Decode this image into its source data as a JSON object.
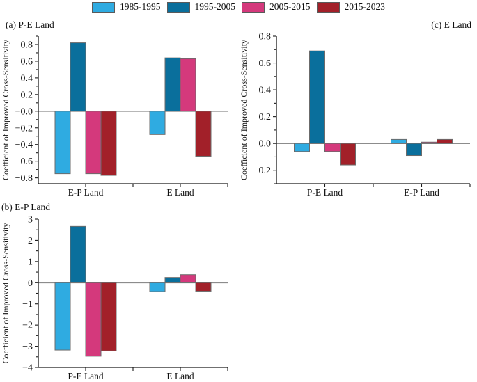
{
  "figure": {
    "legend": {
      "items": [
        {
          "label": "1985-1995",
          "color": "#2fabe1"
        },
        {
          "label": "1995-2005",
          "color": "#0a6f9c"
        },
        {
          "label": "2005-2015",
          "color": "#d4397c"
        },
        {
          "label": "2015-2023",
          "color": "#a22029"
        }
      ]
    }
  },
  "style": {
    "zero_line_color": "#8c8c8c",
    "bar_border_color": "#6b6b6b",
    "axis_color": "#1a1a1a",
    "text_color": "#111111"
  },
  "chart_data": [
    {
      "id": "a",
      "type": "bar",
      "title": "(a) P-E Land",
      "ylabel": "Coefficient of Improved Cross-Sensitivity",
      "xlabel": "",
      "categories": [
        "E-P Land",
        "E Land"
      ],
      "series": [
        {
          "name": "1985-1995",
          "color": "#2fabe1",
          "values": [
            -0.75,
            -0.28
          ]
        },
        {
          "name": "1995-2005",
          "color": "#0a6f9c",
          "values": [
            0.82,
            0.64
          ]
        },
        {
          "name": "2005-2015",
          "color": "#d4397c",
          "values": [
            -0.75,
            0.63
          ]
        },
        {
          "name": "2015-2023",
          "color": "#a22029",
          "values": [
            -0.77,
            -0.54
          ]
        }
      ],
      "ylim": [
        -0.87,
        0.9
      ],
      "ytick_min": -0.8,
      "ytick_max": 0.8,
      "ytick_step": 0.2,
      "decimals": 1,
      "grid": false,
      "legend_position": "shared-top-center"
    },
    {
      "id": "b",
      "type": "bar",
      "title": "(b) E-P Land",
      "ylabel": "Coefficient of Improved Cross-Sensitivity",
      "xlabel": "",
      "categories": [
        "P-E Land",
        "E Land"
      ],
      "series": [
        {
          "name": "1985-1995",
          "color": "#2fabe1",
          "values": [
            -3.18,
            -0.42
          ]
        },
        {
          "name": "1995-2005",
          "color": "#0a6f9c",
          "values": [
            2.66,
            0.25
          ]
        },
        {
          "name": "2005-2015",
          "color": "#d4397c",
          "values": [
            -3.47,
            0.38
          ]
        },
        {
          "name": "2015-2023",
          "color": "#a22029",
          "values": [
            -3.22,
            -0.4
          ]
        }
      ],
      "ylim": [
        -4,
        3
      ],
      "ytick_min": -4,
      "ytick_max": 3,
      "ytick_step": 1,
      "decimals": 0,
      "grid": false,
      "legend_position": "shared-top-center"
    },
    {
      "id": "c",
      "type": "bar",
      "title": "(c) E Land",
      "ylabel": "Coefficient of Improved Cross-Sensitivity",
      "xlabel": "",
      "categories": [
        "P-E Land",
        "E-P Land"
      ],
      "series": [
        {
          "name": "1985-1995",
          "color": "#2fabe1",
          "values": [
            -0.06,
            0.03
          ]
        },
        {
          "name": "1995-2005",
          "color": "#0a6f9c",
          "values": [
            0.69,
            -0.09
          ]
        },
        {
          "name": "2005-2015",
          "color": "#d4397c",
          "values": [
            -0.06,
            0.01
          ]
        },
        {
          "name": "2015-2023",
          "color": "#a22029",
          "values": [
            -0.16,
            0.03
          ]
        }
      ],
      "ylim": [
        -0.3,
        0.8
      ],
      "ytick_min": -0.2,
      "ytick_max": 0.8,
      "ytick_step": 0.2,
      "decimals": 1,
      "grid": false,
      "legend_position": "shared-top-center"
    }
  ]
}
